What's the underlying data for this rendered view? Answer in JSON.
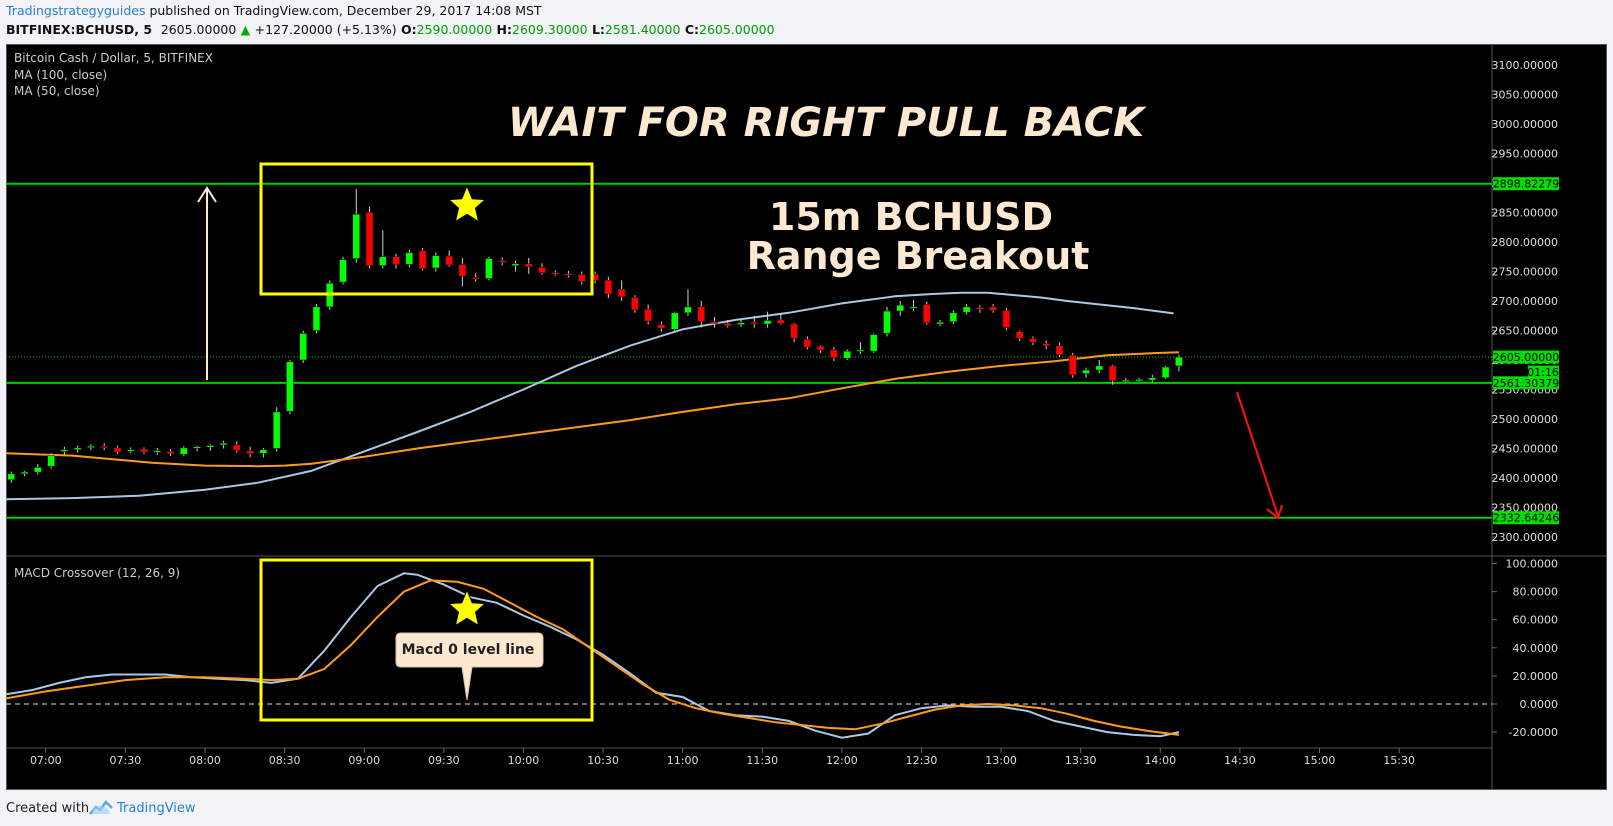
{
  "header": {
    "author": "Tradingstrategyguides",
    "published_text": "published on TradingView.com, December 29, 2017 14:08 MST",
    "symbol": "BITFINEX:BCHUSD, 5",
    "last": "2605.00000",
    "change": "+127.20000 (+5.13%)",
    "o_label": "O:",
    "o_val": "2590.00000",
    "h_label": "H:",
    "h_val": "2609.30000",
    "l_label": "L:",
    "l_val": "2581.40000",
    "c_label": "C:",
    "c_val": "2605.00000"
  },
  "legend": {
    "title": "Bitcoin Cash / Dollar, 5, BITFINEX",
    "ma100": "MA (100, close)",
    "ma50": "MA (50, close)",
    "macd": "MACD Crossover (12, 26, 9)"
  },
  "annotations": {
    "headline": "WAIT FOR RIGHT PULL BACK",
    "subtitle_1": "15m BCHUSD",
    "subtitle_2": "Range Breakout",
    "callout": "Macd 0 level line"
  },
  "price_labels": {
    "line_high": "2898.82279",
    "line_current": "2605.00000",
    "timer": "01:16",
    "line_support": "2561.30379",
    "line_low": "2332.64246"
  },
  "footer": {
    "created_with": "Created with",
    "brand": "TradingView"
  },
  "colors": {
    "bull": "#00ff00",
    "bear": "#ff0000",
    "ma100": "#aac8e6",
    "ma50": "#ff9a1c",
    "horizontal_line": "#00cc00",
    "box": "#ffff00",
    "text_cream": "#fde8d2"
  },
  "chart_data": [
    {
      "type": "candlestick",
      "price_axis": {
        "ticks": [
          "3100.00000",
          "3050.00000",
          "3000.00000",
          "2950.00000",
          "2900.00000",
          "2850.00000",
          "2800.00000",
          "2750.00000",
          "2700.00000",
          "2650.00000",
          "2600.00000",
          "2550.00000",
          "2500.00000",
          "2450.00000",
          "2400.00000",
          "2350.00000",
          "2300.00000"
        ],
        "ylim": [
          2280,
          3120
        ]
      },
      "time_axis": {
        "ticks": [
          "07:00",
          "07:30",
          "08:00",
          "08:30",
          "09:00",
          "09:30",
          "10:00",
          "10:30",
          "11:00",
          "11:30",
          "12:00",
          "12:30",
          "13:00",
          "13:30",
          "14:00",
          "14:30",
          "15:00",
          "15:30"
        ]
      },
      "x_axis_minutes": {
        "start": 405,
        "end": 965
      },
      "candles": [
        [
          407,
          2397,
          2411,
          2392,
          2407
        ],
        [
          412,
          2407,
          2412,
          2403,
          2410
        ],
        [
          417,
          2410,
          2424,
          2406,
          2418
        ],
        [
          422,
          2420,
          2442,
          2416,
          2438
        ],
        [
          427,
          2445,
          2453,
          2440,
          2448
        ],
        [
          432,
          2448,
          2455,
          2443,
          2451
        ],
        [
          437,
          2452,
          2457,
          2447,
          2454
        ],
        [
          442,
          2454,
          2459,
          2447,
          2452
        ],
        [
          447,
          2451,
          2455,
          2441,
          2444
        ],
        [
          452,
          2446,
          2452,
          2442,
          2448
        ],
        [
          457,
          2449,
          2452,
          2440,
          2444
        ],
        [
          462,
          2444,
          2451,
          2439,
          2446
        ],
        [
          467,
          2445,
          2449,
          2437,
          2441
        ],
        [
          472,
          2440,
          2454,
          2437,
          2451
        ],
        [
          477,
          2452,
          2455,
          2445,
          2453
        ],
        [
          482,
          2452,
          2457,
          2446,
          2455
        ],
        [
          487,
          2456,
          2463,
          2450,
          2459
        ],
        [
          492,
          2456,
          2462,
          2443,
          2447
        ],
        [
          497,
          2446,
          2453,
          2435,
          2441
        ],
        [
          502,
          2442,
          2451,
          2435,
          2448
        ],
        [
          507,
          2450,
          2520,
          2445,
          2512
        ],
        [
          512,
          2513,
          2600,
          2508,
          2597
        ],
        [
          517,
          2600,
          2650,
          2595,
          2645
        ],
        [
          522,
          2650,
          2695,
          2645,
          2690
        ],
        [
          527,
          2690,
          2735,
          2685,
          2730
        ],
        [
          532,
          2732,
          2775,
          2728,
          2770
        ],
        [
          537,
          2772,
          2890,
          2765,
          2847
        ],
        [
          542,
          2850,
          2860,
          2755,
          2760
        ],
        [
          547,
          2760,
          2820,
          2755,
          2775
        ],
        [
          552,
          2775,
          2780,
          2755,
          2762
        ],
        [
          557,
          2762,
          2787,
          2757,
          2782
        ],
        [
          562,
          2785,
          2790,
          2752,
          2755
        ],
        [
          567,
          2756,
          2782,
          2750,
          2777
        ],
        [
          572,
          2776,
          2786,
          2758,
          2761
        ],
        [
          577,
          2762,
          2773,
          2725,
          2742
        ],
        [
          582,
          2740,
          2747,
          2733,
          2738
        ],
        [
          587,
          2738,
          2775,
          2735,
          2772
        ],
        [
          592,
          2768,
          2774,
          2760,
          2767
        ],
        [
          597,
          2760,
          2768,
          2750,
          2763
        ],
        [
          602,
          2763,
          2773,
          2746,
          2758
        ],
        [
          607,
          2757,
          2764,
          2745,
          2748
        ],
        [
          612,
          2748,
          2752,
          2743,
          2746
        ],
        [
          617,
          2746,
          2751,
          2740,
          2744
        ],
        [
          622,
          2745,
          2750,
          2728,
          2733
        ],
        [
          627,
          2745,
          2750,
          2730,
          2735
        ],
        [
          632,
          2735,
          2741,
          2705,
          2712
        ],
        [
          637,
          2720,
          2735,
          2700,
          2707
        ],
        [
          642,
          2706,
          2710,
          2680,
          2685
        ],
        [
          647,
          2686,
          2694,
          2660,
          2666
        ],
        [
          652,
          2660,
          2665,
          2648,
          2654
        ],
        [
          657,
          2652,
          2682,
          2649,
          2680
        ],
        [
          662,
          2680,
          2720,
          2675,
          2690
        ],
        [
          667,
          2690,
          2700,
          2655,
          2665
        ],
        [
          672,
          2665,
          2673,
          2655,
          2662
        ],
        [
          677,
          2662,
          2668,
          2655,
          2658
        ],
        [
          682,
          2660,
          2668,
          2656,
          2663
        ],
        [
          687,
          2664,
          2675,
          2655,
          2661
        ],
        [
          692,
          2661,
          2682,
          2655,
          2667
        ],
        [
          697,
          2668,
          2680,
          2660,
          2662
        ],
        [
          702,
          2661,
          2663,
          2630,
          2637
        ],
        [
          707,
          2635,
          2640,
          2618,
          2622
        ],
        [
          712,
          2623,
          2625,
          2612,
          2617
        ],
        [
          717,
          2617,
          2622,
          2598,
          2604
        ],
        [
          722,
          2603,
          2618,
          2600,
          2615
        ],
        [
          727,
          2615,
          2630,
          2610,
          2617
        ],
        [
          732,
          2615,
          2645,
          2612,
          2643
        ],
        [
          737,
          2645,
          2690,
          2640,
          2683
        ],
        [
          742,
          2683,
          2700,
          2675,
          2693
        ],
        [
          747,
          2690,
          2702,
          2684,
          2690
        ],
        [
          752,
          2694,
          2699,
          2660,
          2663
        ],
        [
          757,
          2661,
          2668,
          2657,
          2664
        ],
        [
          762,
          2665,
          2684,
          2661,
          2680
        ],
        [
          767,
          2681,
          2695,
          2677,
          2690
        ],
        [
          772,
          2689,
          2693,
          2680,
          2686
        ],
        [
          777,
          2690,
          2695,
          2680,
          2684
        ],
        [
          782,
          2684,
          2688,
          2650,
          2655
        ],
        [
          787,
          2648,
          2650,
          2632,
          2637
        ],
        [
          792,
          2636,
          2640,
          2625,
          2630
        ],
        [
          797,
          2628,
          2633,
          2618,
          2624
        ],
        [
          802,
          2624,
          2630,
          2605,
          2609
        ],
        [
          807,
          2608,
          2612,
          2570,
          2575
        ],
        [
          812,
          2577,
          2587,
          2570,
          2583
        ],
        [
          817,
          2583,
          2600,
          2578,
          2590
        ],
        [
          822,
          2590,
          2592,
          2558,
          2565
        ],
        [
          827,
          2565,
          2570,
          2562,
          2566
        ],
        [
          832,
          2565,
          2570,
          2563,
          2567
        ],
        [
          837,
          2566,
          2575,
          2563,
          2570
        ],
        [
          842,
          2570,
          2590,
          2568,
          2588
        ],
        [
          847,
          2590,
          2609,
          2581,
          2605
        ]
      ]
    },
    {
      "type": "line",
      "name": "MA (100, close)",
      "x": [
        405,
        430,
        455,
        480,
        500,
        520,
        540,
        560,
        580,
        600,
        620,
        640,
        660,
        680,
        700,
        720,
        740,
        755,
        765,
        775,
        785,
        795,
        805,
        815,
        830,
        845
      ],
      "y": [
        2364,
        2366,
        2370,
        2380,
        2392,
        2412,
        2445,
        2478,
        2512,
        2550,
        2590,
        2624,
        2652,
        2668,
        2680,
        2696,
        2708,
        2712,
        2714,
        2714,
        2710,
        2706,
        2700,
        2695,
        2688,
        2679
      ]
    },
    {
      "type": "line",
      "name": "MA (50, close)",
      "x": [
        405,
        430,
        460,
        480,
        500,
        510,
        520,
        540,
        560,
        580,
        600,
        620,
        640,
        660,
        680,
        700,
        720,
        740,
        760,
        780,
        800,
        820,
        840,
        847
      ],
      "y": [
        2442,
        2438,
        2426,
        2421,
        2420,
        2421,
        2424,
        2436,
        2450,
        2462,
        2474,
        2486,
        2498,
        2512,
        2525,
        2535,
        2552,
        2568,
        2580,
        2590,
        2598,
        2608,
        2612,
        2613
      ]
    },
    {
      "type": "line",
      "name": "MACD Crossover (12, 26, 9)",
      "ylim": [
        -30,
        105
      ],
      "y_ticks": [
        "100.0000",
        "80.0000",
        "60.0000",
        "40.0000",
        "20.0000",
        "0.0000",
        "-20.0000"
      ],
      "series": [
        {
          "x": [
            405,
            415,
            425,
            435,
            445,
            455,
            465,
            475,
            485,
            495,
            505,
            515,
            525,
            535,
            545,
            555,
            560,
            570,
            580,
            590,
            600,
            610,
            620,
            630,
            640,
            650,
            660,
            670,
            680,
            690,
            700,
            710,
            720,
            730,
            740,
            750,
            760,
            770,
            780,
            790,
            800,
            810,
            820,
            830,
            840,
            847
          ],
          "values": [
            7,
            10,
            15,
            19,
            21,
            21,
            21,
            19,
            18,
            17,
            15,
            18,
            38,
            62,
            84,
            93,
            92,
            85,
            76,
            72,
            63,
            55,
            46,
            35,
            22,
            8,
            5,
            -5,
            -8,
            -9,
            -12,
            -19,
            -24,
            -21,
            -8,
            -3,
            -1,
            -2,
            -2,
            -5,
            -12,
            -16,
            -20,
            -22,
            -23,
            -20
          ]
        },
        {
          "x": [
            405,
            420,
            435,
            450,
            465,
            480,
            495,
            505,
            515,
            525,
            535,
            545,
            555,
            565,
            575,
            585,
            595,
            605,
            615,
            625,
            635,
            645,
            655,
            665,
            675,
            685,
            695,
            705,
            715,
            725,
            735,
            745,
            755,
            765,
            775,
            785,
            795,
            805,
            815,
            825,
            835,
            847
          ],
          "values": [
            4,
            9,
            13,
            17,
            19,
            19,
            18,
            17,
            18,
            25,
            42,
            62,
            80,
            88,
            87,
            82,
            72,
            62,
            53,
            40,
            27,
            14,
            3,
            -3,
            -7,
            -10,
            -13,
            -15,
            -17,
            -18,
            -14,
            -9,
            -4,
            -1,
            0,
            -1,
            -3,
            -7,
            -12,
            -16,
            -19,
            -22
          ]
        }
      ]
    }
  ]
}
